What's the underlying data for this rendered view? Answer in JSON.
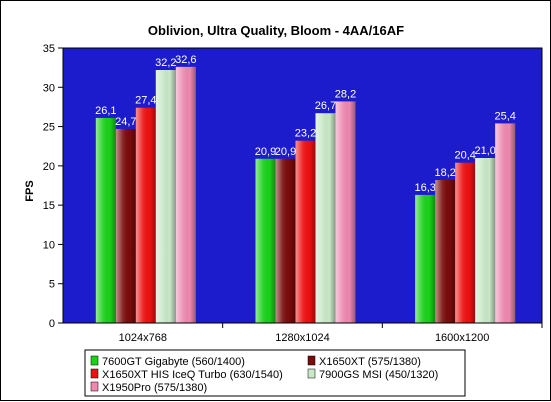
{
  "chart_data": {
    "type": "bar",
    "title": "Oblivion, Ultra Quality, Bloom -  4AA/16AF",
    "ylabel": "FPS",
    "xlabel": "",
    "ylim": [
      0,
      35
    ],
    "yticks": [
      0,
      5,
      10,
      15,
      20,
      25,
      30,
      35
    ],
    "grid": false,
    "legend": "bottom",
    "plot_background": "#1c1ccc",
    "categories": [
      "1024x768",
      "1280x1024",
      "1600x1200"
    ],
    "series": [
      {
        "name": "7600GT Gigabyte (560/1400)",
        "color": "#19d219",
        "values": [
          26.1,
          20.9,
          16.3
        ],
        "labels": [
          "26,1",
          "20,9",
          "16,3"
        ]
      },
      {
        "name": "X1650XT (575/1380)",
        "color": "#7a0b0b",
        "values": [
          24.7,
          20.9,
          18.2
        ],
        "labels": [
          "24,7",
          "20,9",
          "18,2"
        ]
      },
      {
        "name": "X1650XT HIS IceQ Turbo (630/1540)",
        "color": "#ee1010",
        "values": [
          27.4,
          23.2,
          20.4
        ],
        "labels": [
          "27,4",
          "23,2",
          "20,4"
        ]
      },
      {
        "name": "7900GS MSI (450/1320)",
        "color": "#c8e8c8",
        "values": [
          32.2,
          26.7,
          21.0
        ],
        "labels": [
          "32,2",
          "26,7",
          "21,0"
        ]
      },
      {
        "name": "X1950Pro (575/1380)",
        "color": "#ee88b0",
        "values": [
          32.6,
          28.2,
          25.4
        ],
        "labels": [
          "32,6",
          "28,2",
          "25,4"
        ]
      }
    ]
  }
}
